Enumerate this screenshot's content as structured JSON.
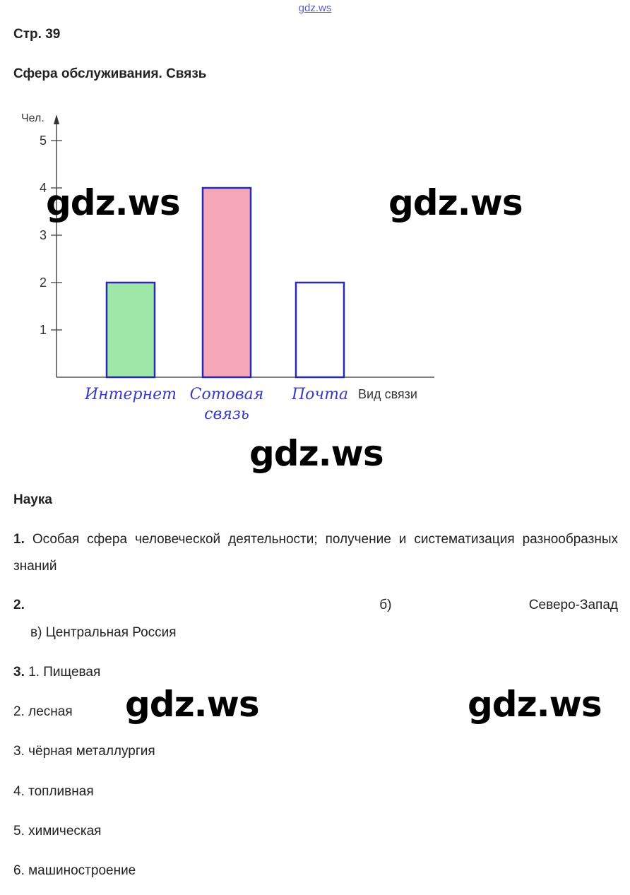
{
  "header": {
    "site_link": "gdz.ws",
    "page_number": "Стр. 39"
  },
  "section1": {
    "title": "Сфера обслуживания. Связь"
  },
  "chart_data": {
    "type": "bar",
    "ylabel": "Чел.",
    "xlabel": "Вид связи",
    "categories": [
      "Интернет",
      "Сотовая связь",
      "Почта"
    ],
    "category_lines": [
      [
        "Интернет"
      ],
      [
        "Сотовая",
        "связь"
      ],
      [
        "Почта"
      ]
    ],
    "values": [
      2,
      4,
      2
    ],
    "ylim": [
      0,
      5
    ],
    "yticks": [
      1,
      2,
      3,
      4,
      5
    ],
    "bar_outline": "#2a2ab0",
    "bar_fills": [
      "#7ee08a",
      "#f08aa0",
      "#ffffff"
    ],
    "grid": false
  },
  "watermarks": [
    "gdz.ws",
    "gdz.ws",
    "gdz.ws",
    "gdz.ws",
    "gdz.ws"
  ],
  "section2": {
    "title": "Наука",
    "item1_num": "1.",
    "item1_text": "Особая сфера человеческой деятельности; получение и систематизация разнообразных знаний",
    "item2_num": "2.",
    "item2_b": "б)",
    "item2_b_value": "Северо-Запад",
    "item2_v": "в) Центральная Россия",
    "item3_num": "3.",
    "item3_list": [
      "1. Пищевая",
      "2. лесная",
      "3. чёрная металлургия",
      "4. топливная",
      "5. химическая",
      "6. машиностроение"
    ]
  }
}
